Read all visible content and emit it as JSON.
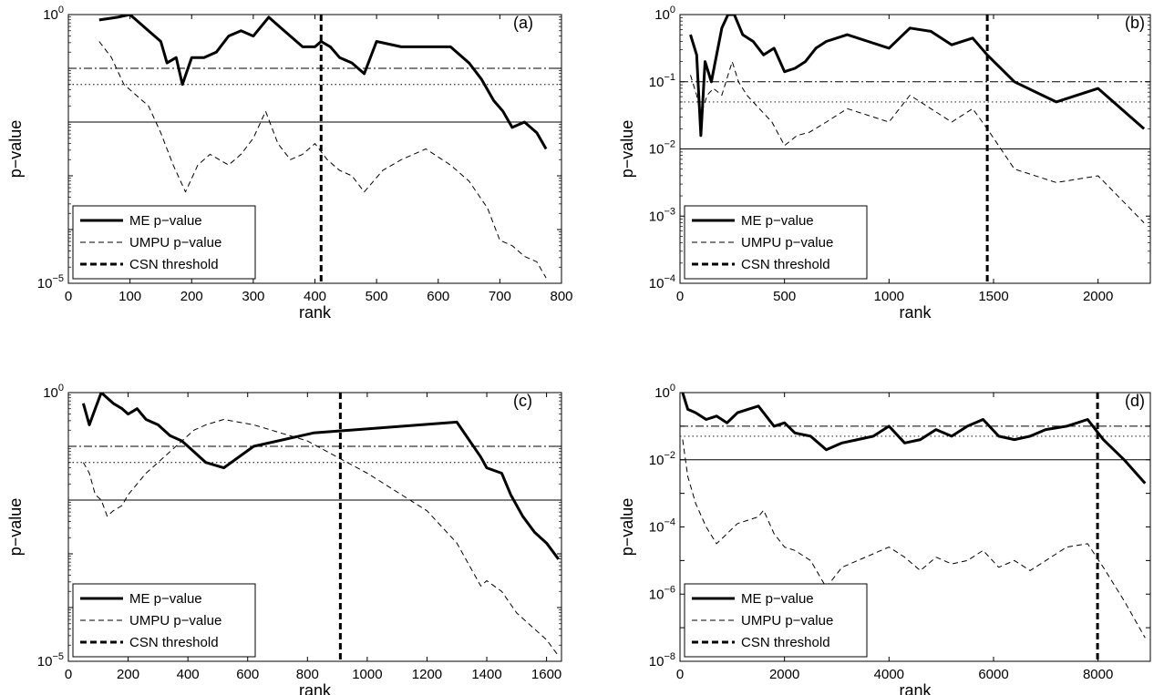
{
  "figure": {
    "ylabel": "p−value",
    "xlabel": "rank",
    "legend": {
      "entries": [
        "ME p−value",
        "UMPU p−value",
        "CSN threshold"
      ],
      "placement": "bottom-left"
    },
    "reference_lines": [
      {
        "style": "solid",
        "value": 0.01
      },
      {
        "style": "dotted",
        "value": 0.05
      },
      {
        "style": "dash-dot",
        "value": 0.1
      }
    ]
  },
  "chart_data": [
    {
      "type": "line",
      "panel_label": "(a)",
      "xlabel": "rank",
      "ylabel": "p−value",
      "yscale": "log",
      "xlim": [
        0,
        800
      ],
      "xticks": [
        0,
        100,
        200,
        300,
        400,
        500,
        600,
        700,
        800
      ],
      "ylim_exp": [
        -5,
        0
      ],
      "ytick_labels": [
        {
          "base": "10",
          "exp": "0",
          "e": 0
        },
        {
          "base": "10",
          "exp": "−5",
          "e": -5
        }
      ],
      "threshold_x": 410,
      "series": [
        {
          "name": "ME p−value",
          "style": "thick",
          "x": [
            50,
            80,
            100,
            130,
            150,
            160,
            175,
            185,
            200,
            220,
            240,
            260,
            280,
            300,
            325,
            340,
            360,
            380,
            400,
            410,
            425,
            440,
            460,
            480,
            500,
            540,
            580,
            620,
            650,
            670,
            690,
            705,
            720,
            740,
            760,
            775
          ],
          "log10": [
            -0.1,
            -0.05,
            0,
            -0.3,
            -0.5,
            -0.9,
            -0.8,
            -1.3,
            -0.8,
            -0.8,
            -0.7,
            -0.4,
            -0.3,
            -0.4,
            -0.05,
            -0.2,
            -0.4,
            -0.6,
            -0.6,
            -0.5,
            -0.6,
            -0.8,
            -0.9,
            -1.1,
            -0.5,
            -0.6,
            -0.6,
            -0.6,
            -0.9,
            -1.2,
            -1.6,
            -1.8,
            -2.1,
            -2.0,
            -2.2,
            -2.5
          ]
        },
        {
          "name": "UMPU p−value",
          "style": "thin-dashed",
          "x": [
            50,
            70,
            90,
            110,
            130,
            150,
            170,
            190,
            210,
            230,
            260,
            280,
            300,
            320,
            340,
            360,
            380,
            400,
            420,
            440,
            460,
            480,
            510,
            540,
            580,
            620,
            650,
            680,
            700,
            720,
            740,
            760,
            775
          ],
          "log10": [
            -0.5,
            -0.8,
            -1.3,
            -1.5,
            -1.7,
            -2.2,
            -2.8,
            -3.3,
            -2.8,
            -2.6,
            -2.8,
            -2.6,
            -2.3,
            -1.8,
            -2.4,
            -2.7,
            -2.6,
            -2.4,
            -2.7,
            -2.9,
            -3.0,
            -3.3,
            -2.9,
            -2.7,
            -2.5,
            -2.8,
            -3.1,
            -3.6,
            -4.2,
            -4.3,
            -4.5,
            -4.6,
            -4.9
          ]
        }
      ]
    },
    {
      "type": "line",
      "panel_label": "(b)",
      "xlabel": "rank",
      "ylabel": "p−value",
      "yscale": "log",
      "xlim": [
        0,
        2250
      ],
      "xticks": [
        0,
        500,
        1000,
        1500,
        2000
      ],
      "ylim_exp": [
        -4,
        0
      ],
      "ytick_labels": [
        {
          "base": "10",
          "exp": "0",
          "e": 0
        },
        {
          "base": "10",
          "exp": "−1",
          "e": -1
        },
        {
          "base": "10",
          "exp": "−2",
          "e": -2
        },
        {
          "base": "10",
          "exp": "−3",
          "e": -3
        },
        {
          "base": "10",
          "exp": "−4",
          "e": -4
        }
      ],
      "threshold_x": 1470,
      "series": [
        {
          "name": "ME p−value",
          "style": "thick",
          "x": [
            50,
            80,
            100,
            120,
            150,
            200,
            230,
            260,
            300,
            350,
            400,
            450,
            500,
            550,
            600,
            650,
            700,
            800,
            900,
            1000,
            1100,
            1200,
            1300,
            1400,
            1470,
            1600,
            1800,
            2000,
            2220
          ],
          "log10": [
            -0.3,
            -0.6,
            -1.8,
            -0.7,
            -1.0,
            -0.2,
            0,
            0,
            -0.3,
            -0.4,
            -0.6,
            -0.5,
            -0.85,
            -0.8,
            -0.7,
            -0.5,
            -0.4,
            -0.3,
            -0.4,
            -0.5,
            -0.2,
            -0.25,
            -0.45,
            -0.35,
            -0.6,
            -1.0,
            -1.3,
            -1.1,
            -1.7
          ]
        },
        {
          "name": "UMPU p−value",
          "style": "thin-dashed",
          "x": [
            50,
            80,
            100,
            130,
            160,
            200,
            250,
            280,
            320,
            380,
            440,
            500,
            560,
            620,
            700,
            800,
            900,
            1000,
            1100,
            1200,
            1300,
            1400,
            1470,
            1600,
            1800,
            2000,
            2220
          ],
          "log10": [
            -0.9,
            -1.2,
            -1.5,
            -1.2,
            -1.1,
            -1.2,
            -0.7,
            -1.0,
            -1.2,
            -1.4,
            -1.6,
            -1.95,
            -1.8,
            -1.75,
            -1.6,
            -1.4,
            -1.5,
            -1.6,
            -1.2,
            -1.4,
            -1.6,
            -1.4,
            -1.7,
            -2.3,
            -2.5,
            -2.4,
            -3.1
          ]
        }
      ]
    },
    {
      "type": "line",
      "panel_label": "(c)",
      "xlabel": "rank",
      "ylabel": "p−value",
      "yscale": "log",
      "xlim": [
        0,
        1650
      ],
      "xticks": [
        0,
        200,
        400,
        600,
        800,
        1000,
        1200,
        1400,
        1600
      ],
      "ylim_exp": [
        -5,
        0
      ],
      "ytick_labels": [
        {
          "base": "10",
          "exp": "0",
          "e": 0
        },
        {
          "base": "10",
          "exp": "−5",
          "e": -5
        }
      ],
      "threshold_x": 910,
      "series": [
        {
          "name": "ME p−value",
          "style": "thick",
          "x": [
            50,
            70,
            90,
            110,
            130,
            150,
            180,
            200,
            230,
            260,
            300,
            340,
            380,
            420,
            460,
            520,
            620,
            820,
            1300,
            1380,
            1400,
            1450,
            1480,
            1520,
            1560,
            1600,
            1640
          ],
          "log10": [
            -0.2,
            -0.6,
            -0.3,
            0,
            -0.1,
            -0.2,
            -0.3,
            -0.4,
            -0.3,
            -0.5,
            -0.6,
            -0.8,
            -0.9,
            -1.1,
            -1.3,
            -1.4,
            -1.0,
            -0.75,
            -0.55,
            -1.2,
            -1.4,
            -1.5,
            -1.9,
            -2.3,
            -2.6,
            -2.8,
            -3.1
          ]
        },
        {
          "name": "UMPU p−value",
          "style": "thin-dashed",
          "x": [
            50,
            70,
            90,
            110,
            130,
            150,
            180,
            200,
            230,
            260,
            300,
            340,
            380,
            420,
            460,
            520,
            620,
            800,
            1000,
            1200,
            1300,
            1380,
            1400,
            1450,
            1500,
            1560,
            1600,
            1640
          ],
          "log10": [
            -1.3,
            -1.5,
            -1.9,
            -2.0,
            -2.3,
            -2.2,
            -2.1,
            -1.9,
            -1.7,
            -1.5,
            -1.3,
            -1.1,
            -0.9,
            -0.7,
            -0.6,
            -0.5,
            -0.6,
            -0.9,
            -1.5,
            -2.2,
            -2.8,
            -3.6,
            -3.5,
            -3.7,
            -4.1,
            -4.4,
            -4.6,
            -4.9
          ]
        }
      ]
    },
    {
      "type": "line",
      "panel_label": "(d)",
      "xlabel": "rank",
      "ylabel": "p−value",
      "yscale": "log",
      "xlim": [
        0,
        9000
      ],
      "xticks": [
        0,
        2000,
        4000,
        6000,
        8000
      ],
      "ylim_exp": [
        -8,
        0
      ],
      "ytick_labels": [
        {
          "base": "10",
          "exp": "0",
          "e": 0
        },
        {
          "base": "10",
          "exp": "−2",
          "e": -2
        },
        {
          "base": "10",
          "exp": "−4",
          "e": -4
        },
        {
          "base": "10",
          "exp": "−6",
          "e": -6
        },
        {
          "base": "10",
          "exp": "−8",
          "e": -8
        }
      ],
      "threshold_x": 7990,
      "series": [
        {
          "name": "ME p−value",
          "style": "thick",
          "x": [
            50,
            150,
            300,
            500,
            700,
            900,
            1100,
            1300,
            1500,
            1600,
            1800,
            2000,
            2200,
            2500,
            2800,
            3100,
            3400,
            3700,
            4000,
            4300,
            4600,
            4900,
            5200,
            5500,
            5800,
            6100,
            6400,
            6700,
            7000,
            7400,
            7800,
            8100,
            8500,
            8900
          ],
          "log10": [
            0,
            -0.5,
            -0.6,
            -0.8,
            -0.7,
            -0.9,
            -0.6,
            -0.5,
            -0.4,
            -0.6,
            -1.0,
            -0.9,
            -1.2,
            -1.3,
            -1.7,
            -1.5,
            -1.4,
            -1.3,
            -1.0,
            -1.5,
            -1.4,
            -1.1,
            -1.3,
            -1.0,
            -0.8,
            -1.3,
            -1.4,
            -1.3,
            -1.1,
            -1.0,
            -0.8,
            -1.4,
            -2.0,
            -2.7
          ]
        },
        {
          "name": "UMPU p−value",
          "style": "thin-dashed",
          "x": [
            50,
            150,
            300,
            500,
            700,
            900,
            1100,
            1300,
            1500,
            1600,
            1800,
            2000,
            2200,
            2500,
            2800,
            3100,
            3400,
            3700,
            4000,
            4300,
            4600,
            4900,
            5200,
            5500,
            5800,
            6100,
            6400,
            6700,
            7000,
            7400,
            7800,
            8100,
            8500,
            8900
          ],
          "log10": [
            -1.4,
            -2.5,
            -3.3,
            -4.0,
            -4.5,
            -4.2,
            -3.9,
            -3.8,
            -3.7,
            -3.5,
            -4.2,
            -4.6,
            -4.7,
            -5.0,
            -5.8,
            -5.2,
            -5.0,
            -4.8,
            -4.6,
            -4.9,
            -5.3,
            -4.9,
            -5.1,
            -5.0,
            -4.7,
            -5.2,
            -5.0,
            -5.3,
            -5.0,
            -4.6,
            -4.5,
            -5.2,
            -6.2,
            -7.3
          ]
        }
      ]
    }
  ]
}
